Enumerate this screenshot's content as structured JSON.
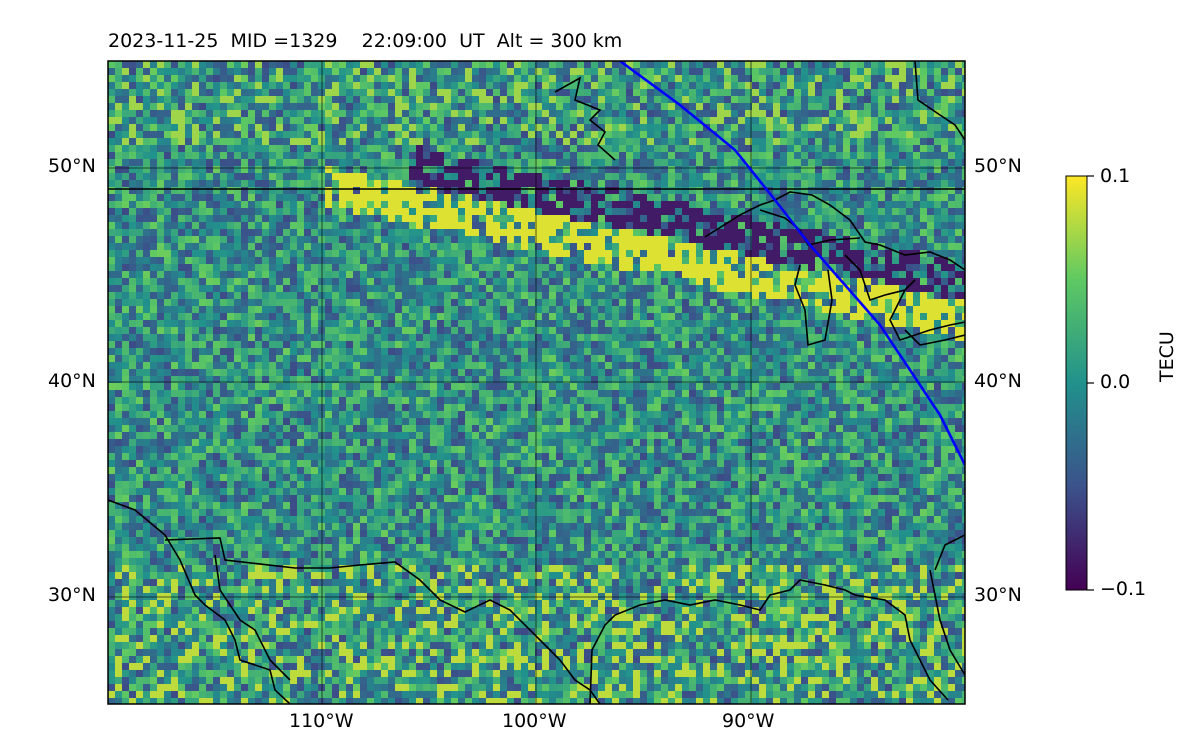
{
  "title": {
    "date": "2023-11-25",
    "mid": "MID =1329",
    "time": "22:09:00",
    "ut": "UT",
    "alt": "Alt = 300 km"
  },
  "map": {
    "projection": "plate-carree",
    "lon_range": [
      -120,
      -80
    ],
    "lat_range": [
      25,
      55
    ],
    "gridlines": true,
    "lat_ticks": [
      {
        "lat": 50,
        "label": "50°N"
      },
      {
        "lat": 40,
        "label": "40°N"
      },
      {
        "lat": 30,
        "label": "30°N"
      }
    ],
    "lon_ticks": [
      {
        "lon": -110,
        "label": "110°W"
      },
      {
        "lon": -100,
        "label": "100°W"
      },
      {
        "lon": -90,
        "label": "90°W"
      }
    ],
    "terminator_color": "#0000ff",
    "colormap": "viridis",
    "colors": {
      "low": "#440154",
      "mid": "#21918c",
      "high": "#fde725"
    }
  },
  "colorbar": {
    "label": "TECU",
    "min": -0.1,
    "max": 0.1,
    "ticks": [
      {
        "value": 0.1,
        "label": "0.1"
      },
      {
        "value": 0.0,
        "label": "0.0"
      },
      {
        "value": -0.1,
        "label": "−0.1"
      }
    ]
  }
}
